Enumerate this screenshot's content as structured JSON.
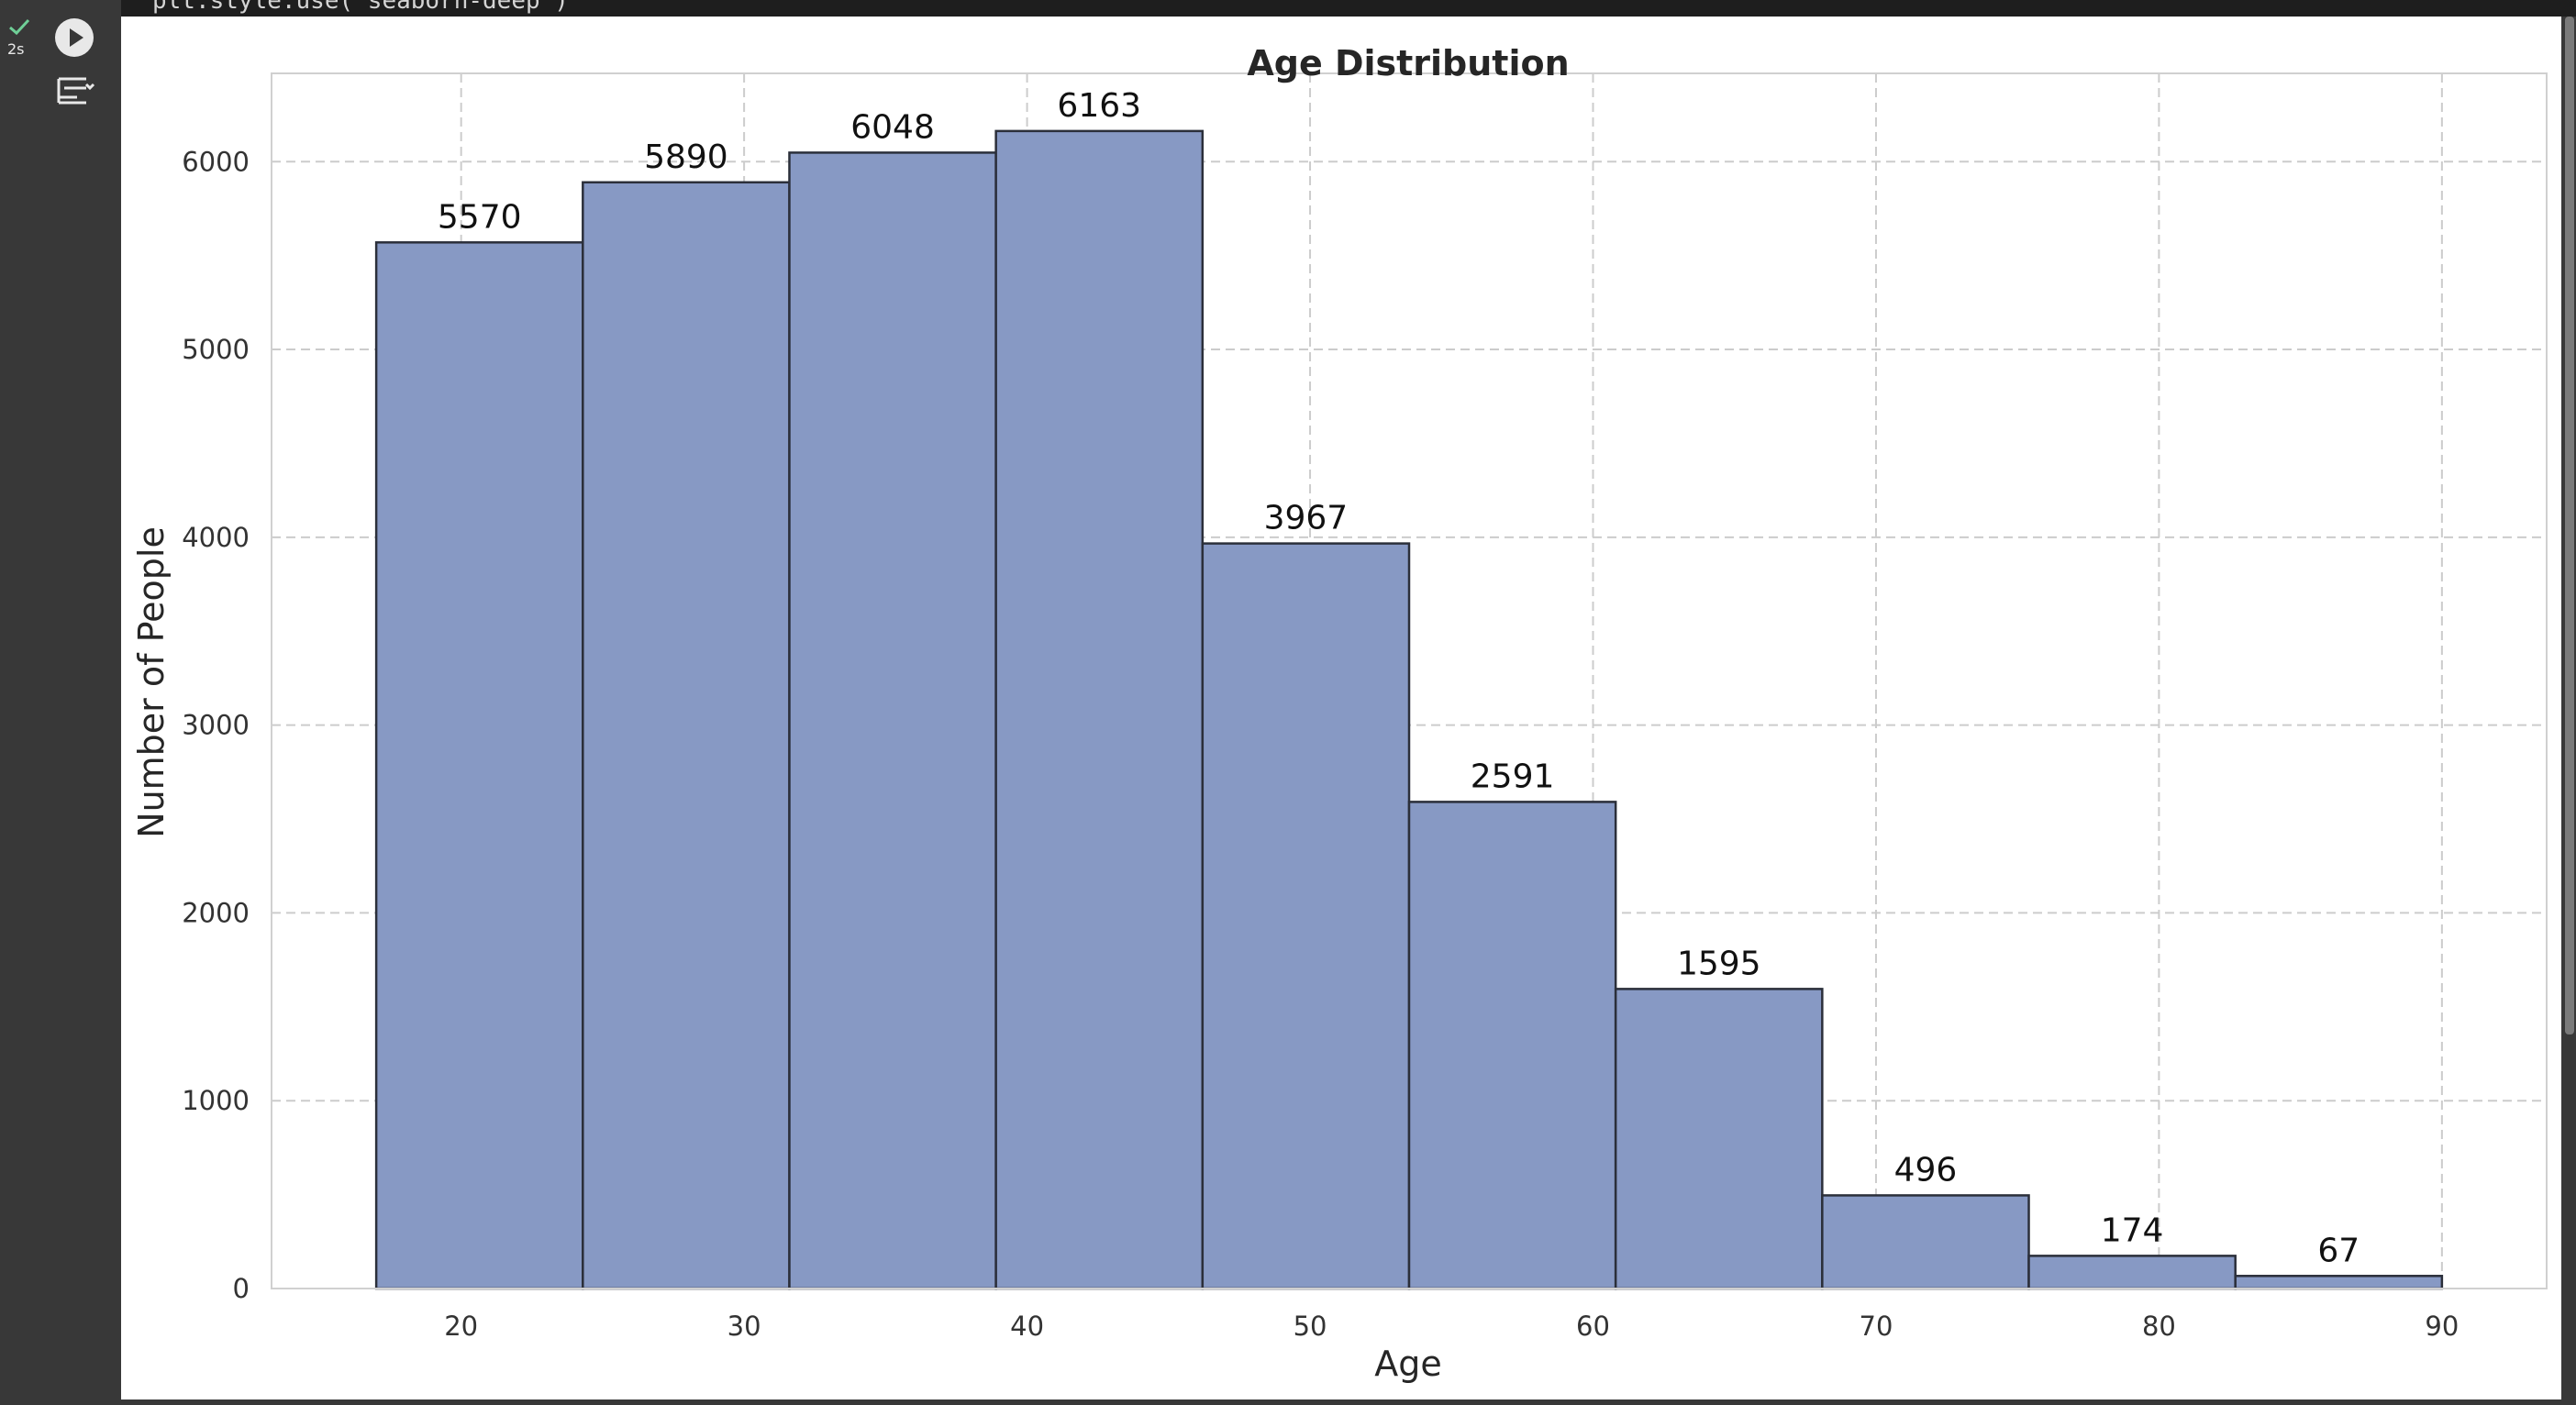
{
  "cell": {
    "status_time": "2s",
    "code_text": "plt.style.use('seaborn-deep')"
  },
  "colors": {
    "bar_fill": "#8799c4",
    "bar_edge": "#2b2f3a",
    "grid": "#cccccc",
    "background": "#383838",
    "status_check": "#6fcf97"
  },
  "icons": {
    "status": "check-icon",
    "run": "play-icon",
    "output": "output-options-icon"
  },
  "chart_data": {
    "type": "bar",
    "title": "Age Distribution",
    "xlabel": "Age",
    "ylabel": "Number of People",
    "bin_edges": [
      17.0,
      24.3,
      31.6,
      38.9,
      46.2,
      53.5,
      60.8,
      68.1,
      75.4,
      82.7,
      90.0
    ],
    "values": [
      5570,
      5890,
      6048,
      6163,
      3967,
      2591,
      1595,
      496,
      174,
      67
    ],
    "value_labels": [
      "5570",
      "5890",
      "6048",
      "6163",
      "3967",
      "2591",
      "1595",
      "496",
      "174",
      "67"
    ],
    "xlim": [
      13.3,
      93.7
    ],
    "ylim": [
      0,
      6470
    ],
    "xticks": [
      20,
      30,
      40,
      50,
      60,
      70,
      80,
      90
    ],
    "xtick_labels": [
      "20",
      "30",
      "40",
      "50",
      "60",
      "70",
      "80",
      "90"
    ],
    "yticks": [
      0,
      1000,
      2000,
      3000,
      4000,
      5000,
      6000
    ],
    "ytick_labels": [
      "0",
      "1000",
      "2000",
      "3000",
      "4000",
      "5000",
      "6000"
    ],
    "grid": true,
    "grid_style": "dashed"
  }
}
